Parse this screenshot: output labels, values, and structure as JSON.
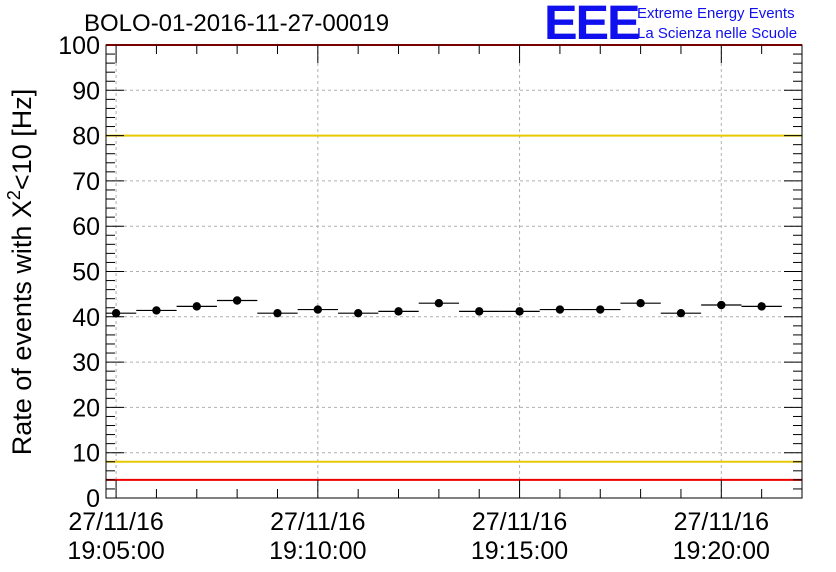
{
  "header": {
    "run_title": "BOLO-01-2016-11-27-00019",
    "logo_mark": "EEE",
    "logo_line1": "Extreme Energy Events",
    "logo_line2": "La Scienza nelle Scuole"
  },
  "colors": {
    "points": "#000000",
    "upper_warning_line": "#e8c800",
    "lower_warning_line": "#e8c800",
    "limit_line": "#ee0000",
    "grid": "#b0b0b0",
    "logo": "#1010ee"
  },
  "chart_data": {
    "type": "scatter",
    "ylabel_text": "Rate of events with X",
    "ylabel_sup": "2",
    "ylabel_suffix": "<10 [Hz]",
    "ylim": [
      0,
      100
    ],
    "yticks": [
      0,
      10,
      20,
      30,
      40,
      50,
      60,
      70,
      80,
      90,
      100
    ],
    "xlim": [
      "27/11/16 19:04:45",
      "27/11/16 19:22:00"
    ],
    "xticks": [
      {
        "x": "27/11/16 19:05:00",
        "date": "27/11/16",
        "time": "19:05:00"
      },
      {
        "x": "27/11/16 19:10:00",
        "date": "27/11/16",
        "time": "19:10:00"
      },
      {
        "x": "27/11/16 19:15:00",
        "date": "27/11/16",
        "time": "19:15:00"
      },
      {
        "x": "27/11/16 19:20:00",
        "date": "27/11/16",
        "time": "19:20:00"
      }
    ],
    "grid": true,
    "bin_width_seconds": 60,
    "x": [
      "27/11/16 19:05:00",
      "27/11/16 19:06:00",
      "27/11/16 19:07:00",
      "27/11/16 19:08:00",
      "27/11/16 19:09:00",
      "27/11/16 19:10:00",
      "27/11/16 19:11:00",
      "27/11/16 19:12:00",
      "27/11/16 19:13:00",
      "27/11/16 19:14:00",
      "27/11/16 19:15:00",
      "27/11/16 19:16:00",
      "27/11/16 19:17:00",
      "27/11/16 19:18:00",
      "27/11/16 19:19:00",
      "27/11/16 19:20:00",
      "27/11/16 19:21:00"
    ],
    "values": [
      40.8,
      41.4,
      42.3,
      43.6,
      40.8,
      41.6,
      40.8,
      41.2,
      43.0,
      41.2,
      41.2,
      41.6,
      41.6,
      43.0,
      40.8,
      42.6,
      42.3
    ],
    "reference_lines": [
      {
        "y": 100,
        "color": "#ee0000"
      },
      {
        "y": 80,
        "color": "#e8c800"
      },
      {
        "y": 8,
        "color": "#e8c800"
      },
      {
        "y": 4,
        "color": "#ee0000"
      }
    ]
  }
}
